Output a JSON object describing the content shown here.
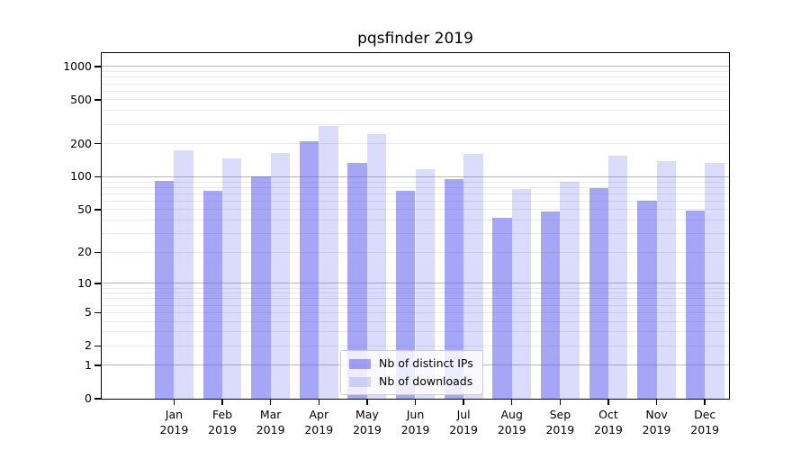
{
  "chart_data": {
    "type": "bar",
    "title": "pqsfinder 2019",
    "categories": [
      "Jan",
      "Feb",
      "Mar",
      "Apr",
      "May",
      "Jun",
      "Jul",
      "Aug",
      "Sep",
      "Oct",
      "Nov",
      "Dec"
    ],
    "category_year": "2019",
    "series": [
      {
        "name": "Nb of distinct IPs",
        "color": "rgba(84,84,238,0.52)",
        "values": [
          91,
          75,
          100,
          211,
          134,
          75,
          96,
          42,
          48,
          79,
          60,
          49
        ]
      },
      {
        "name": "Nb of downloads",
        "color": "rgba(84,84,238,0.21)",
        "values": [
          173,
          147,
          166,
          290,
          246,
          117,
          162,
          77,
          90,
          157,
          140,
          133
        ]
      }
    ],
    "xlabel": "",
    "ylabel": "",
    "yscale": "log1p",
    "ylim": [
      0,
      1324
    ],
    "y_tick_values": [
      0,
      1,
      2,
      5,
      10,
      20,
      50,
      100,
      200,
      500,
      1000
    ],
    "y_tick_labels": [
      "0",
      "1",
      "2",
      "5",
      "10",
      "20",
      "50",
      "100",
      "200",
      "500",
      "1000"
    ],
    "grid": "horizontal major+minor",
    "legend_position": "lower center",
    "colors": {
      "bar_base": "#5454ee",
      "major_grid": "#b8b8b8",
      "minor_grid": "#e9e9e9",
      "axis": "#000000",
      "legend_border": "#cccccc",
      "background": "#ffffff"
    }
  }
}
